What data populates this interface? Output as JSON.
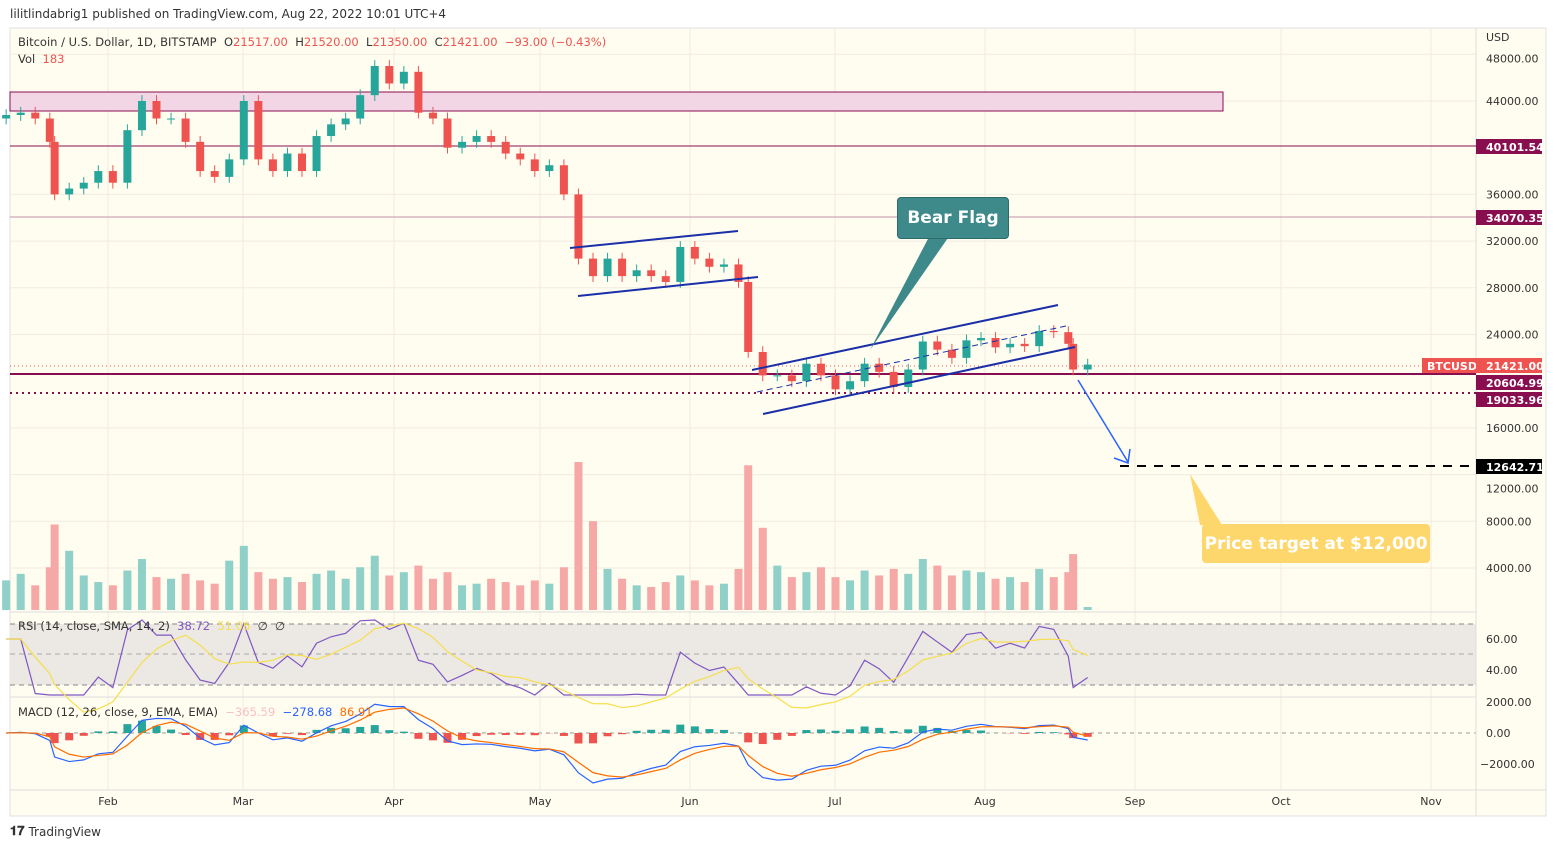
{
  "header": {
    "published": "lilitlindabrig1 published on TradingView.com, Aug 22, 2022 10:01 UTC+4"
  },
  "legend": {
    "symbol": "Bitcoin / U.S. Dollar, 1D, BITSTAMP",
    "o_label": "O",
    "o": "21517.00",
    "h_label": "H",
    "h": "21520.00",
    "l_label": "L",
    "l": "21350.00",
    "c_label": "C",
    "c": "21421.00",
    "change": "−93.00 (−0.43%)",
    "vol_label": "Vol",
    "vol": "183"
  },
  "rsi_legend": {
    "label": "RSI (14, close, SMA, 14, 2)",
    "rsi": "38.72",
    "sma": "51.06",
    "x1": "∅",
    "x2": "∅"
  },
  "macd_legend": {
    "label": "MACD (12, 26, close, 9, EMA, EMA)",
    "hist": "−365.59",
    "macd": "−278.68",
    "signal": "86.91"
  },
  "footer": {
    "brand": "TradingView"
  },
  "price_scale": {
    "currency": "USD",
    "ticks": [
      "48000.00",
      "44000.00",
      "36000.00",
      "32000.00",
      "28000.00",
      "24000.00",
      "16000.00",
      "12000.00",
      "8000.00",
      "4000.00"
    ],
    "tick_values": [
      48000,
      44000,
      36000,
      32000,
      28000,
      24000,
      16000,
      12000,
      8000,
      4000
    ]
  },
  "rsi_scale": {
    "ticks": [
      "60.00",
      "40.00"
    ]
  },
  "macd_scale": {
    "ticks": [
      "2000.00",
      "0.00",
      "−2000.00"
    ]
  },
  "time_axis": [
    "Feb",
    "Mar",
    "Apr",
    "May",
    "Jun",
    "Jul",
    "Aug",
    "Sep",
    "Oct",
    "Nov"
  ],
  "markers": {
    "ticker": "BTCUSD",
    "last": "21421.00",
    "l1": "40101.54",
    "l2": "34070.35",
    "l3": "20604.99",
    "l4": "19033.96",
    "target": "12642.71"
  },
  "annotations": {
    "bear_flag": "Bear Flag",
    "target": "Price target at $12,000"
  },
  "colors": {
    "up": "#26a69a",
    "down": "#ef5350",
    "level": "#880e4f",
    "zone": "#f3d6e6",
    "callout_teal": "#3e8a8a",
    "callout_yellow": "#fdd76b",
    "rsi": "#7e57c2",
    "rsi_sma": "#f5df4d",
    "macd": "#2962ff",
    "signal": "#ff6d00"
  },
  "chart_data": {
    "type": "candlestick",
    "title": "Bitcoin / U.S. Dollar, 1D, BITSTAMP",
    "ylim": [
      0,
      49000
    ],
    "x_day_of_year": [
      11,
      14,
      17,
      20,
      21,
      24,
      27,
      30,
      33,
      36,
      39,
      42,
      45,
      48,
      51,
      54,
      57,
      60,
      63,
      66,
      69,
      72,
      75,
      78,
      81,
      84,
      87,
      90,
      93,
      96,
      99,
      102,
      105,
      108,
      111,
      114,
      117,
      120,
      123,
      126,
      129,
      132,
      135,
      138,
      141,
      144,
      147,
      150,
      153,
      156,
      159,
      162,
      164,
      167,
      170,
      173,
      176,
      179,
      182,
      185,
      188,
      191,
      194,
      197,
      200,
      203,
      206,
      209,
      212,
      215,
      218,
      221,
      224,
      227,
      230,
      231,
      234
    ],
    "close": [
      42800,
      43000,
      42500,
      40500,
      36000,
      36500,
      37000,
      38000,
      37000,
      41500,
      44000,
      42500,
      42500,
      40500,
      38000,
      37500,
      39000,
      44000,
      39000,
      38000,
      39500,
      38000,
      41000,
      42000,
      42500,
      44500,
      47000,
      45500,
      46500,
      43000,
      42500,
      40000,
      40500,
      41000,
      40500,
      39500,
      39000,
      38000,
      38500,
      36000,
      30500,
      29000,
      30500,
      29000,
      29500,
      29000,
      28500,
      31500,
      30500,
      29800,
      30000,
      28500,
      22500,
      20500,
      20500,
      20000,
      21500,
      20500,
      19300,
      20000,
      21500,
      20800,
      19500,
      21000,
      23400,
      22700,
      22000,
      23500,
      23700,
      22900,
      23200,
      23000,
      24300,
      24200,
      23200,
      21000,
      21421
    ],
    "volume": [
      1800,
      2200,
      1500,
      2600,
      5200,
      3600,
      2100,
      1700,
      1500,
      2400,
      3100,
      2000,
      1900,
      2200,
      1800,
      1600,
      3000,
      3900,
      2300,
      1900,
      2000,
      1700,
      2200,
      2400,
      1900,
      2600,
      3300,
      2100,
      2300,
      2700,
      1900,
      2300,
      1500,
      1600,
      1900,
      1700,
      1500,
      1800,
      1600,
      2600,
      9000,
      5400,
      2500,
      1900,
      1500,
      1400,
      1700,
      2100,
      1800,
      1500,
      1600,
      2500,
      8800,
      5000,
      2700,
      2000,
      2300,
      2600,
      2000,
      1800,
      2400,
      2100,
      2500,
      2200,
      3100,
      2700,
      2100,
      2400,
      2300,
      1900,
      2000,
      1700,
      2500,
      2000,
      2300,
      3400,
      183
    ],
    "levels": [
      40101.54,
      34070.35,
      20604.99,
      19033.96,
      12642.71
    ],
    "resistance_zone": [
      43150,
      44800
    ]
  }
}
